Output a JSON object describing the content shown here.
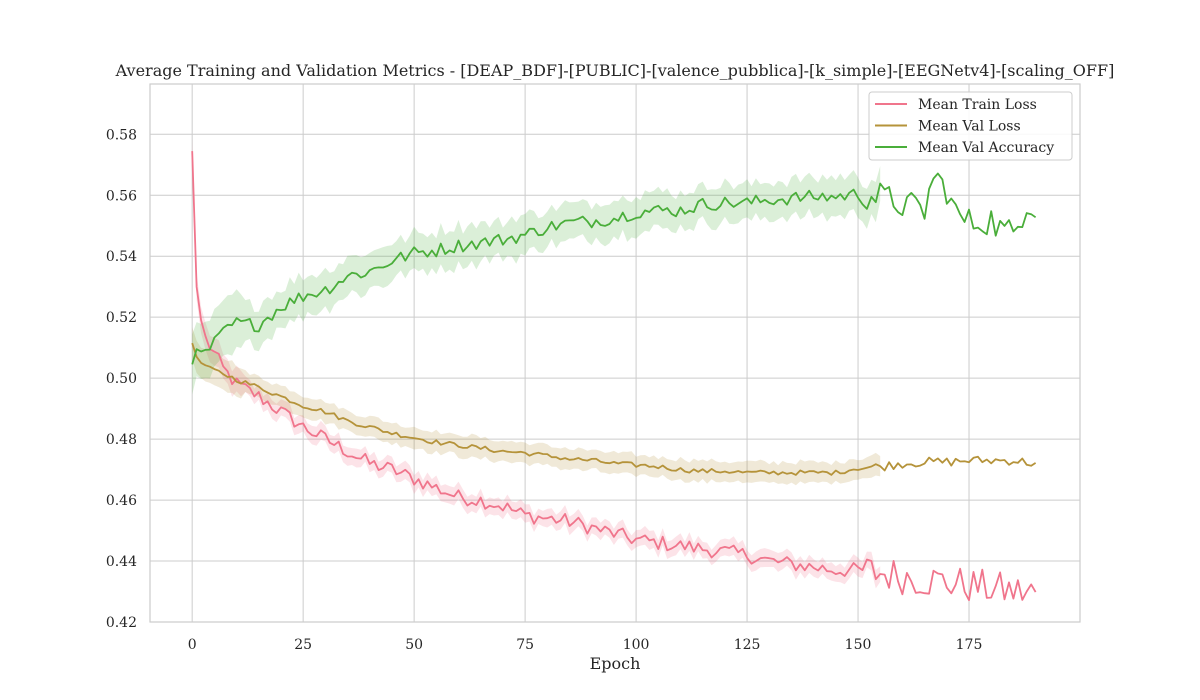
{
  "chart_data": {
    "type": "line",
    "title": "Average Training and Validation Metrics - [DEAP_BDF]-[PUBLIC]-[valence_pubblica]-[k_simple]-[EEGNetv4]-[scaling_OFF]",
    "xlabel": "Epoch",
    "ylabel": "",
    "xlim": [
      -9.5,
      200
    ],
    "ylim": [
      0.42,
      0.5965
    ],
    "xticks": [
      0,
      25,
      50,
      75,
      100,
      125,
      150,
      175
    ],
    "yticks": [
      0.42,
      0.44,
      0.46,
      0.48,
      0.5,
      0.52,
      0.54,
      0.56,
      0.58
    ],
    "ytick_labels": [
      "0.42",
      "0.44",
      "0.46",
      "0.48",
      "0.50",
      "0.52",
      "0.54",
      "0.56",
      "0.58"
    ],
    "grid": true,
    "legend_position": "top-right",
    "epochs_last": 190,
    "band_end_epoch": 155,
    "series": [
      {
        "name": "Mean Train Loss",
        "color": "#f0758c",
        "band": 0.0025,
        "points": [
          [
            0,
            0.5745
          ],
          [
            1,
            0.53
          ],
          [
            2,
            0.519
          ],
          [
            3,
            0.513
          ],
          [
            5,
            0.508
          ],
          [
            7,
            0.503
          ],
          [
            10,
            0.498
          ],
          [
            15,
            0.494
          ],
          [
            20,
            0.489
          ],
          [
            25,
            0.484
          ],
          [
            30,
            0.48
          ],
          [
            35,
            0.476
          ],
          [
            40,
            0.472
          ],
          [
            45,
            0.47
          ],
          [
            50,
            0.467
          ],
          [
            55,
            0.464
          ],
          [
            60,
            0.461
          ],
          [
            65,
            0.46
          ],
          [
            70,
            0.458
          ],
          [
            75,
            0.455
          ],
          [
            80,
            0.454
          ],
          [
            85,
            0.453
          ],
          [
            90,
            0.451
          ],
          [
            95,
            0.449
          ],
          [
            100,
            0.447
          ],
          [
            105,
            0.446
          ],
          [
            110,
            0.445
          ],
          [
            115,
            0.444
          ],
          [
            120,
            0.443
          ],
          [
            125,
            0.442
          ],
          [
            130,
            0.44
          ],
          [
            135,
            0.439
          ],
          [
            140,
            0.438
          ],
          [
            145,
            0.437
          ],
          [
            150,
            0.437
          ],
          [
            155,
            0.436
          ],
          [
            160,
            0.435
          ],
          [
            165,
            0.434
          ],
          [
            170,
            0.433
          ],
          [
            175,
            0.432
          ],
          [
            180,
            0.431
          ],
          [
            185,
            0.43
          ],
          [
            190,
            0.4295
          ]
        ],
        "noise": 0.0025,
        "noise_after": 150,
        "noise_late": 0.006
      },
      {
        "name": "Mean Val Loss",
        "color": "#b5933a",
        "band": 0.003,
        "points": [
          [
            0,
            0.5115
          ],
          [
            1,
            0.507
          ],
          [
            2,
            0.505
          ],
          [
            4,
            0.503
          ],
          [
            7,
            0.5015
          ],
          [
            10,
            0.4995
          ],
          [
            15,
            0.497
          ],
          [
            20,
            0.494
          ],
          [
            25,
            0.491
          ],
          [
            30,
            0.489
          ],
          [
            35,
            0.486
          ],
          [
            40,
            0.484
          ],
          [
            45,
            0.482
          ],
          [
            50,
            0.4805
          ],
          [
            55,
            0.479
          ],
          [
            60,
            0.478
          ],
          [
            65,
            0.477
          ],
          [
            70,
            0.476
          ],
          [
            75,
            0.4755
          ],
          [
            80,
            0.4745
          ],
          [
            85,
            0.4735
          ],
          [
            90,
            0.473
          ],
          [
            95,
            0.472
          ],
          [
            100,
            0.4715
          ],
          [
            105,
            0.471
          ],
          [
            110,
            0.47
          ],
          [
            115,
            0.4695
          ],
          [
            120,
            0.4695
          ],
          [
            125,
            0.469
          ],
          [
            130,
            0.469
          ],
          [
            135,
            0.469
          ],
          [
            140,
            0.469
          ],
          [
            145,
            0.469
          ],
          [
            150,
            0.4705
          ],
          [
            155,
            0.471
          ],
          [
            160,
            0.472
          ],
          [
            165,
            0.4725
          ],
          [
            170,
            0.4725
          ],
          [
            175,
            0.473
          ],
          [
            180,
            0.473
          ],
          [
            185,
            0.473
          ],
          [
            190,
            0.472
          ]
        ],
        "noise": 0.0008,
        "noise_after": 150,
        "noise_late": 0.0015
      },
      {
        "name": "Mean Val Accuracy",
        "color": "#4aae3a",
        "band": 0.0055,
        "points": [
          [
            0,
            0.5045
          ],
          [
            1,
            0.5095
          ],
          [
            3,
            0.508
          ],
          [
            5,
            0.5115
          ],
          [
            8,
            0.5165
          ],
          [
            10,
            0.518
          ],
          [
            15,
            0.5175
          ],
          [
            20,
            0.5235
          ],
          [
            25,
            0.527
          ],
          [
            30,
            0.529
          ],
          [
            35,
            0.5335
          ],
          [
            40,
            0.535
          ],
          [
            45,
            0.5385
          ],
          [
            50,
            0.541
          ],
          [
            55,
            0.542
          ],
          [
            60,
            0.5435
          ],
          [
            65,
            0.5445
          ],
          [
            70,
            0.5455
          ],
          [
            75,
            0.547
          ],
          [
            80,
            0.5495
          ],
          [
            85,
            0.551
          ],
          [
            90,
            0.5515
          ],
          [
            95,
            0.5525
          ],
          [
            100,
            0.5545
          ],
          [
            105,
            0.555
          ],
          [
            110,
            0.555
          ],
          [
            115,
            0.557
          ],
          [
            120,
            0.5575
          ],
          [
            125,
            0.5575
          ],
          [
            130,
            0.5585
          ],
          [
            135,
            0.559
          ],
          [
            140,
            0.5595
          ],
          [
            145,
            0.5595
          ],
          [
            150,
            0.5605
          ],
          [
            155,
            0.5595
          ],
          [
            160,
            0.557
          ],
          [
            165,
            0.555
          ],
          [
            167,
            0.566
          ],
          [
            170,
            0.562
          ],
          [
            172,
            0.554
          ],
          [
            175,
            0.551
          ],
          [
            180,
            0.552
          ],
          [
            182,
            0.549
          ],
          [
            185,
            0.547
          ],
          [
            188,
            0.558
          ],
          [
            190,
            0.556
          ]
        ],
        "noise": 0.0022,
        "noise_after": 150,
        "noise_late": 0.005
      }
    ]
  }
}
